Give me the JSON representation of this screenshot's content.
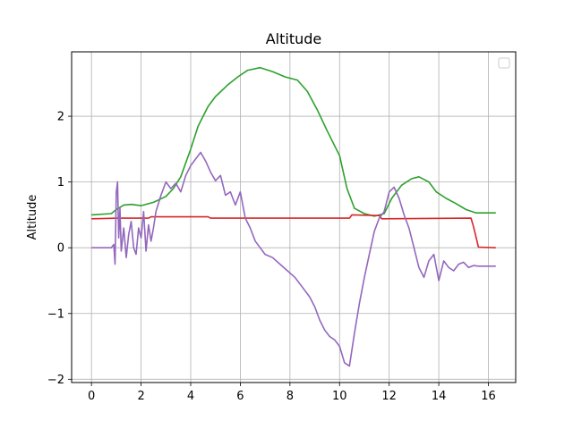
{
  "chart_data": {
    "type": "line",
    "title": "Altitude",
    "xlabel": "",
    "ylabel": "Altitude",
    "xlim": [
      -0.8,
      17.1
    ],
    "ylim": [
      -2.05,
      2.98
    ],
    "xticks": [
      0,
      2,
      4,
      6,
      8,
      10,
      12,
      14,
      16
    ],
    "yticks": [
      -2,
      -1,
      0,
      1,
      2
    ],
    "xtick_labels": [
      "0",
      "2",
      "4",
      "6",
      "8",
      "10",
      "12",
      "14",
      "16"
    ],
    "ytick_labels": [
      "−2",
      "−1",
      "0",
      "1",
      "2"
    ],
    "grid": true,
    "legend": "top-right, empty",
    "series": [
      {
        "color": "#2ca02c",
        "x": [
          0,
          0.8,
          1.0,
          1.3,
          1.6,
          2.0,
          2.5,
          3.0,
          3.3,
          3.6,
          4.0,
          4.3,
          4.7,
          5.0,
          5.5,
          5.9,
          6.3,
          6.8,
          7.3,
          7.8,
          8.3,
          8.7,
          9.1,
          9.5,
          10.0,
          10.3,
          10.6,
          11.0,
          11.4,
          11.8,
          12.1,
          12.5,
          12.9,
          13.2,
          13.6,
          13.9,
          14.3,
          14.7,
          15.1,
          15.5,
          16.0,
          16.3
        ],
        "y": [
          0.5,
          0.52,
          0.58,
          0.65,
          0.66,
          0.64,
          0.69,
          0.78,
          0.9,
          1.08,
          1.5,
          1.85,
          2.15,
          2.3,
          2.48,
          2.6,
          2.7,
          2.74,
          2.68,
          2.6,
          2.55,
          2.38,
          2.1,
          1.78,
          1.4,
          0.9,
          0.6,
          0.52,
          0.48,
          0.52,
          0.75,
          0.95,
          1.05,
          1.08,
          1.0,
          0.85,
          0.75,
          0.67,
          0.58,
          0.53,
          0.53,
          0.53
        ]
      },
      {
        "color": "#d62728",
        "x": [
          0,
          1.0,
          2.3,
          2.4,
          4.7,
          4.8,
          10.4,
          10.5,
          11.6,
          11.7,
          15.3,
          15.4,
          15.6,
          16.3
        ],
        "y": [
          0.44,
          0.45,
          0.45,
          0.47,
          0.47,
          0.45,
          0.45,
          0.5,
          0.49,
          0.44,
          0.45,
          0.32,
          0.01,
          0.0
        ]
      },
      {
        "color": "#9467bd",
        "x": [
          0,
          0.8,
          0.9,
          0.95,
          1.0,
          1.05,
          1.1,
          1.15,
          1.2,
          1.3,
          1.4,
          1.5,
          1.6,
          1.7,
          1.8,
          1.9,
          2.0,
          2.1,
          2.2,
          2.3,
          2.4,
          2.5,
          2.6,
          2.8,
          3.0,
          3.2,
          3.4,
          3.6,
          3.8,
          4.0,
          4.2,
          4.4,
          4.6,
          4.8,
          5.0,
          5.2,
          5.4,
          5.6,
          5.8,
          6.0,
          6.2,
          6.4,
          6.6,
          6.8,
          7.0,
          7.3,
          7.6,
          7.9,
          8.2,
          8.5,
          8.8,
          9.0,
          9.2,
          9.4,
          9.6,
          9.8,
          10.0,
          10.2,
          10.4,
          10.5,
          10.6,
          10.8,
          11.0,
          11.2,
          11.4,
          11.6,
          11.8,
          12.0,
          12.2,
          12.4,
          12.6,
          12.8,
          13.0,
          13.2,
          13.4,
          13.6,
          13.8,
          14.0,
          14.2,
          14.4,
          14.6,
          14.8,
          15.0,
          15.2,
          15.4,
          15.6,
          16.0,
          16.3
        ],
        "y": [
          0.0,
          0.0,
          0.05,
          -0.25,
          0.85,
          1.0,
          0.15,
          0.6,
          -0.05,
          0.3,
          -0.15,
          0.2,
          0.4,
          0.0,
          -0.1,
          0.3,
          0.15,
          0.55,
          -0.05,
          0.35,
          0.1,
          0.3,
          0.55,
          0.8,
          1.0,
          0.9,
          0.98,
          0.85,
          1.1,
          1.25,
          1.35,
          1.45,
          1.32,
          1.15,
          1.02,
          1.1,
          0.8,
          0.85,
          0.65,
          0.85,
          0.45,
          0.3,
          0.1,
          0.0,
          -0.1,
          -0.15,
          -0.25,
          -0.35,
          -0.45,
          -0.6,
          -0.75,
          -0.9,
          -1.1,
          -1.25,
          -1.35,
          -1.4,
          -1.5,
          -1.75,
          -1.8,
          -1.55,
          -1.3,
          -0.85,
          -0.45,
          -0.1,
          0.25,
          0.45,
          0.55,
          0.85,
          0.92,
          0.75,
          0.5,
          0.3,
          0.0,
          -0.3,
          -0.45,
          -0.2,
          -0.1,
          -0.5,
          -0.2,
          -0.3,
          -0.35,
          -0.25,
          -0.22,
          -0.3,
          -0.27,
          -0.28,
          -0.28,
          -0.28
        ]
      }
    ]
  }
}
